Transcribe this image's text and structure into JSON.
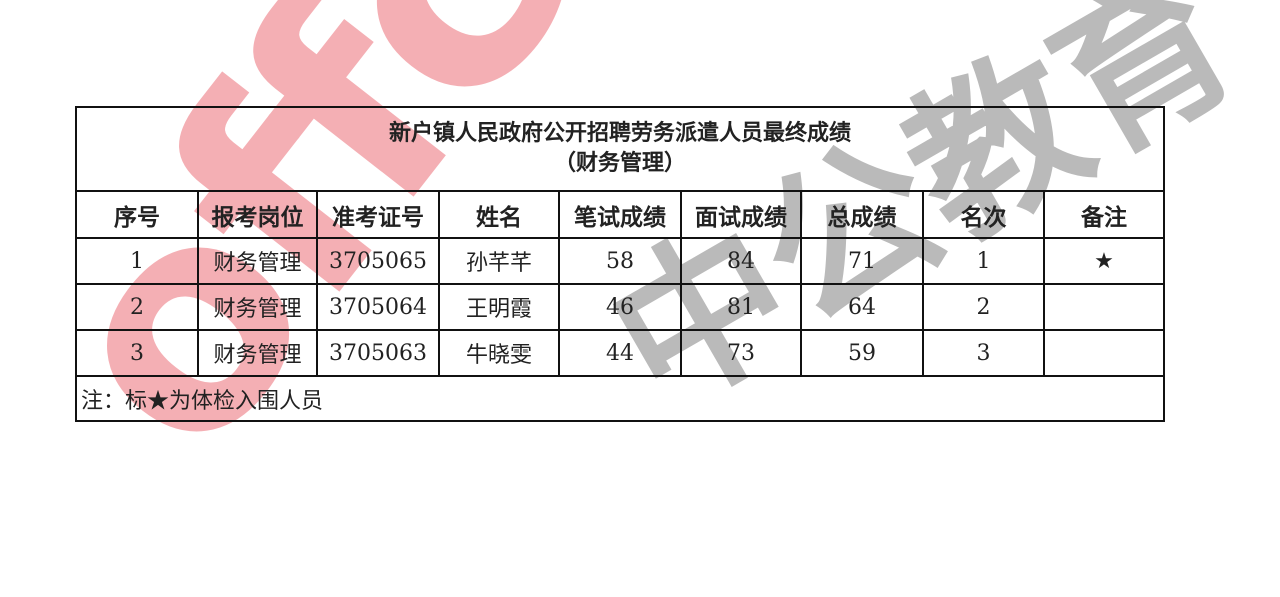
{
  "watermark": {
    "brand_latin": "offcn",
    "brand_chinese": "中公教育"
  },
  "title": "新户镇人民政府公开招聘劳务派遣人员最终成绩",
  "subtitle": "（财务管理）",
  "headers": [
    "序号",
    "报考岗位",
    "准考证号",
    "姓名",
    "笔试成绩",
    "面试成绩",
    "总成绩",
    "名次",
    "备注"
  ],
  "rows": [
    [
      "1",
      "财务管理",
      "3705065",
      "孙芊芊",
      "58",
      "84",
      "71",
      "1",
      "★"
    ],
    [
      "2",
      "财务管理",
      "3705064",
      "王明霞",
      "46",
      "81",
      "64",
      "2",
      ""
    ],
    [
      "3",
      "财务管理",
      "3705063",
      "牛晓雯",
      "44",
      "73",
      "59",
      "3",
      ""
    ]
  ],
  "note": "注：标★为体检入围人员"
}
